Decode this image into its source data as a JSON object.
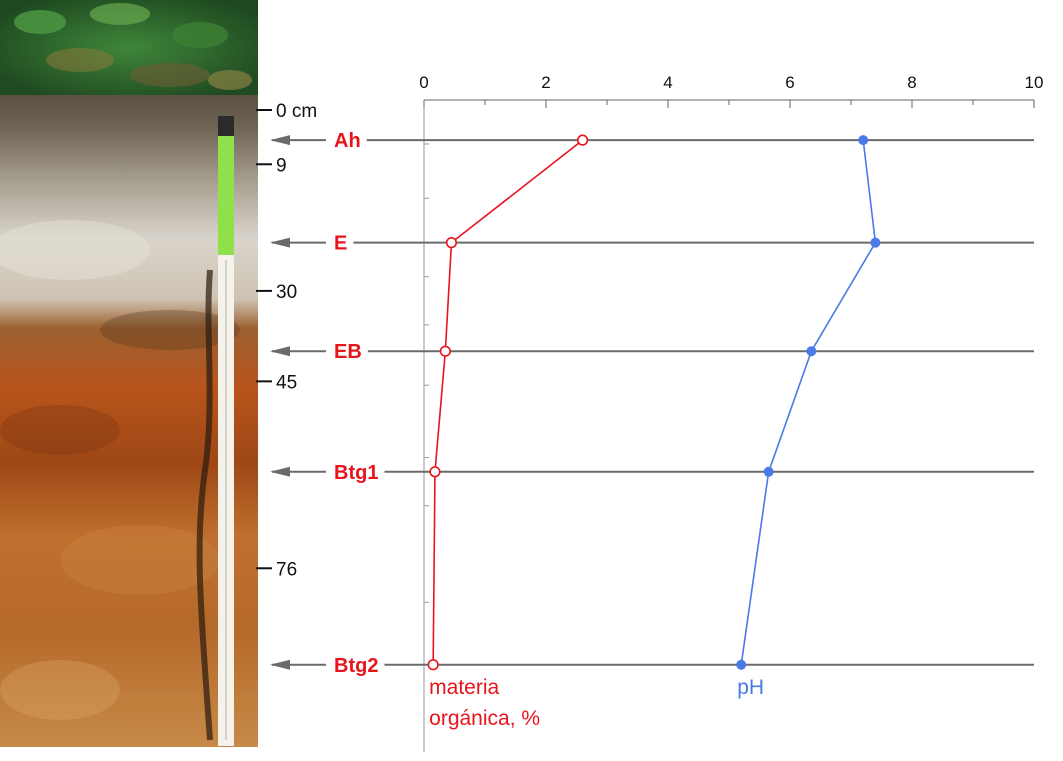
{
  "chart_data": {
    "type": "line",
    "x_axis": {
      "range": [
        0,
        10
      ],
      "ticks": [
        "0",
        "2",
        "4",
        "6",
        "8",
        "10"
      ],
      "tick_values": [
        0,
        2,
        4,
        6,
        8,
        10
      ],
      "position": "top",
      "minor_ticks": 1
    },
    "depth_axis": {
      "unit": "cm",
      "range": [
        0,
        96
      ],
      "labels": [
        {
          "value": 0,
          "text": "0 cm"
        },
        {
          "value": 9,
          "text": "9"
        },
        {
          "value": 30,
          "text": "30"
        },
        {
          "value": 45,
          "text": "45"
        },
        {
          "value": 76,
          "text": "76"
        }
      ]
    },
    "horizons": [
      {
        "label": "Ah",
        "depth": 5
      },
      {
        "label": "E",
        "depth": 22
      },
      {
        "label": "EB",
        "depth": 40
      },
      {
        "label": "Btg1",
        "depth": 60
      },
      {
        "label": "Btg2",
        "depth": 92
      }
    ],
    "series": [
      {
        "name": "materia orgánica, %",
        "label_lines": [
          "materia",
          "orgánica, %"
        ],
        "color": "#e8141c",
        "marker": "open-circle",
        "values": [
          2.6,
          0.45,
          0.35,
          0.18,
          0.15
        ]
      },
      {
        "name": "pH",
        "label_lines": [
          "pH"
        ],
        "color": "#4a7ae8",
        "marker": "filled-circle",
        "values": [
          7.2,
          7.4,
          6.35,
          5.65,
          5.2
        ]
      }
    ],
    "grid": true,
    "legend": "inline-below-lines"
  },
  "image": {
    "subject": "soil profile photograph with measuring tape"
  },
  "colors": {
    "horizon_label": "#e8141c",
    "axis": "#666666",
    "guide_line": "#6b6b6b"
  }
}
